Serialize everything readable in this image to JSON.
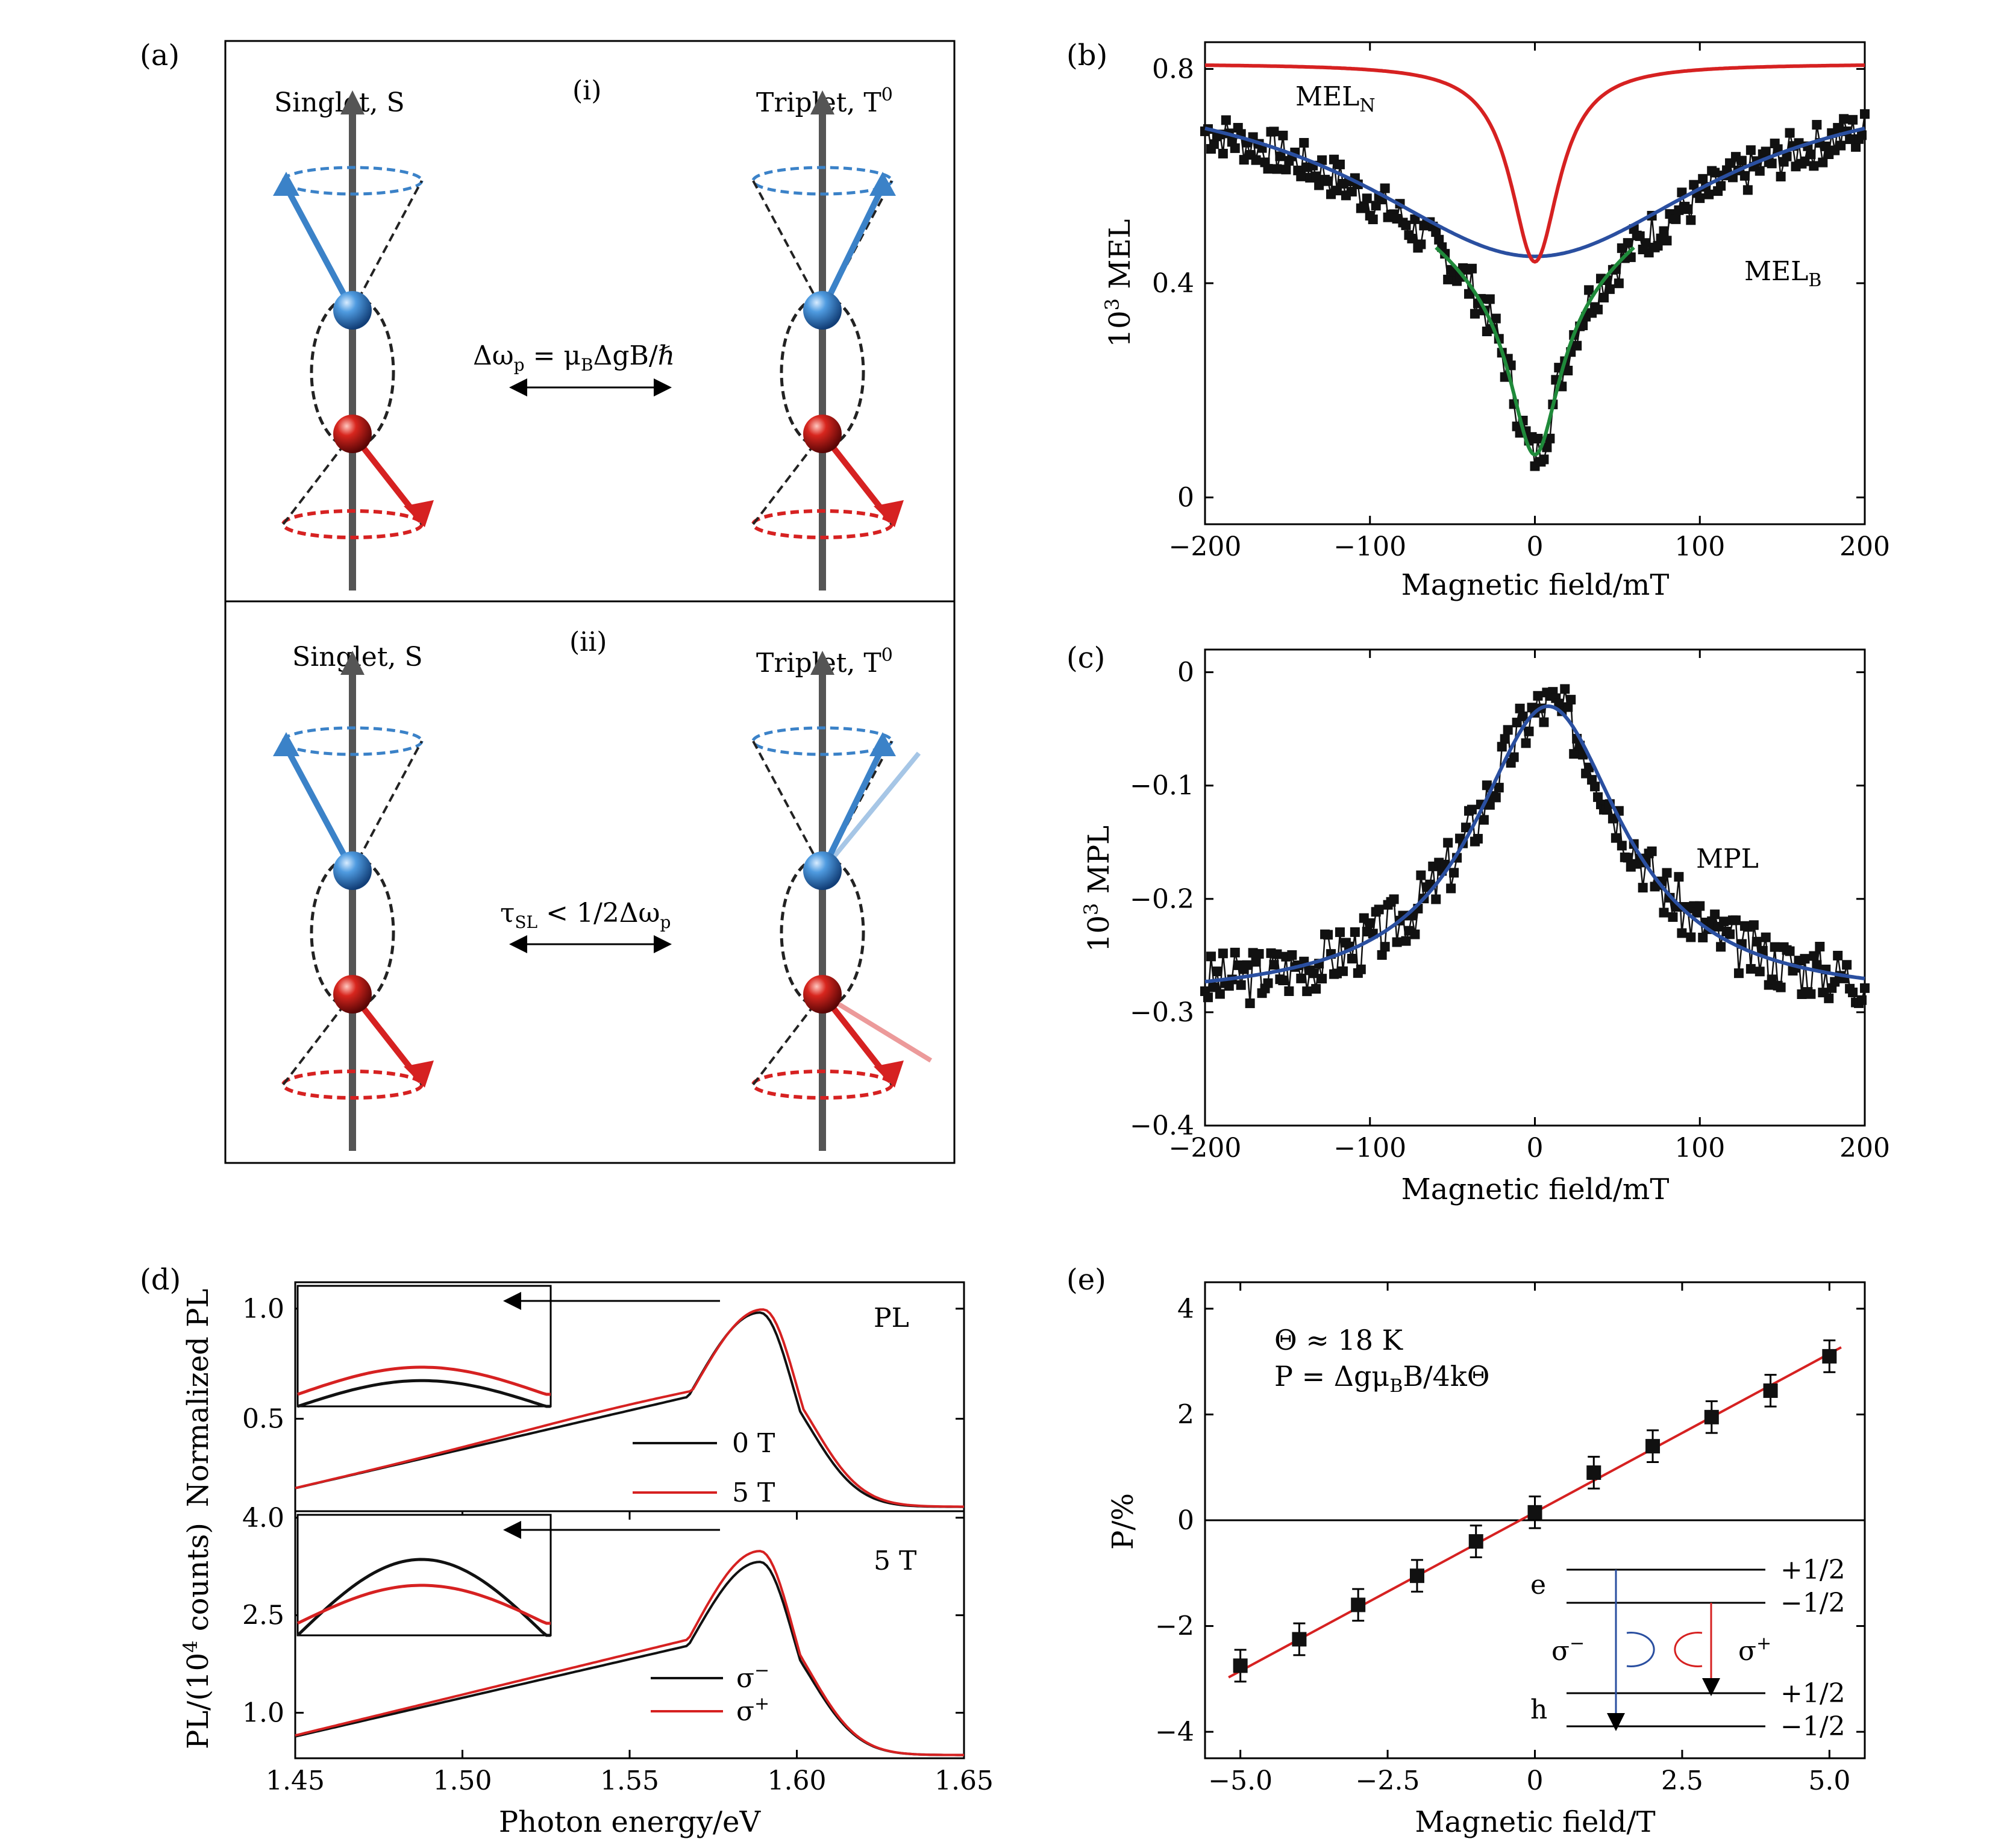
{
  "panel_letters": {
    "a": "(a)",
    "b": "(b)",
    "c": "(c)",
    "d": "(d)",
    "e": "(e)"
  },
  "schematic": {
    "i": {
      "label": "(i)",
      "singlet": "Singlet, S",
      "triplet_prefix": "Triplet, T",
      "triplet_sup": "0",
      "formula": "Δω",
      "formula_sub": "p",
      "formula_rest": " = μ",
      "formula_sub2": "B",
      "formula_end": "ΔgB/ℏ"
    },
    "ii": {
      "label": "(ii)",
      "singlet": "Singlet, S",
      "triplet_prefix": "Triplet, T",
      "triplet_sup": "0",
      "formula": "τ",
      "formula_sub": "SL",
      "formula_rest": " < 1/2Δω",
      "formula_sub2": "p"
    },
    "colors": {
      "electron": "#3b82c8",
      "hole": "#d62121",
      "axis": "#555555",
      "cone": "#222222"
    }
  },
  "chart_data": [
    {
      "id": "b",
      "type": "line",
      "xlabel": "Magnetic field/mT",
      "ylabel_prefix": "10",
      "ylabel_sup": "3",
      "ylabel_suffix": " MEL",
      "xlim": [
        -200,
        200
      ],
      "ylim": [
        -0.05,
        0.85
      ],
      "xticks": [
        -200,
        -100,
        0,
        100,
        200
      ],
      "xtick_labels": [
        "−200",
        "−100",
        "0",
        "100",
        "200"
      ],
      "yticks": [
        0,
        0.4,
        0.8
      ],
      "ytick_labels": [
        "0",
        "0.4",
        "0.8"
      ],
      "series": [
        {
          "name": "MEL",
          "name_sub": "N",
          "color": "#d62121",
          "model": "lorentz",
          "baseline": 0.81,
          "depth": 0.37,
          "width": 18
        },
        {
          "name": "MEL",
          "name_sub": "B",
          "color": "#2a4fa0",
          "model": "lorentz",
          "baseline": 0.79,
          "depth": 0.34,
          "width": 130
        },
        {
          "name": "",
          "color": "#1f8a3a",
          "model": "sum",
          "xrange": [
            -60,
            60
          ]
        },
        {
          "name": "",
          "color": "#111111",
          "model": "data",
          "points": 220,
          "noise": 0.04,
          "seed": 7
        }
      ]
    },
    {
      "id": "c",
      "type": "line",
      "xlabel": "Magnetic field/mT",
      "ylabel_prefix": "10",
      "ylabel_sup": "3",
      "ylabel_suffix": " MPL",
      "xlim": [
        -200,
        200
      ],
      "ylim": [
        -0.4,
        0.02
      ],
      "xticks": [
        -200,
        -100,
        0,
        100,
        200
      ],
      "xtick_labels": [
        "−200",
        "−100",
        "0",
        "100",
        "200"
      ],
      "yticks": [
        0,
        -0.1,
        -0.2,
        -0.3,
        -0.4
      ],
      "ytick_labels": [
        "0",
        "−0.1",
        "−0.2",
        "−0.3",
        "−0.4"
      ],
      "series": [
        {
          "name": "MPL",
          "color": "#2a4fa0",
          "model": "lorentz",
          "baseline": -0.29,
          "depth": -0.26,
          "width": 55,
          "center": 8
        },
        {
          "name": "",
          "color": "#111111",
          "model": "data",
          "points": 220,
          "noise": 0.025,
          "seed": 3
        }
      ]
    },
    {
      "id": "d_top",
      "type": "line",
      "ylabel": "Normalized PL",
      "xlim": [
        1.45,
        1.65
      ],
      "ylim": [
        0.08,
        1.12
      ],
      "yticks": [
        0.5,
        1.0
      ],
      "ytick_labels": [
        "0.5",
        "1.0"
      ],
      "annotation": "PL",
      "series": [
        {
          "name": "0 T",
          "color": "#111111",
          "peak": 1.589,
          "amp": 1.0,
          "shoulder": 0.0
        },
        {
          "name": "5 T",
          "color": "#d62121",
          "peak": 1.59,
          "amp": 1.0,
          "shoulder": 0.03
        }
      ]
    },
    {
      "id": "d_bottom",
      "type": "line",
      "ylabel_prefix": "PL/(10",
      "ylabel_sup": "4",
      "ylabel_suffix": " counts)",
      "xlabel": "Photon energy/eV",
      "xlim": [
        1.45,
        1.65
      ],
      "ylim": [
        0.3,
        4.1
      ],
      "xticks": [
        1.45,
        1.5,
        1.55,
        1.6,
        1.65
      ],
      "xtick_labels": [
        "1.45",
        "1.50",
        "1.55",
        "1.60",
        "1.65"
      ],
      "yticks": [
        1.0,
        2.5,
        4.0
      ],
      "ytick_labels": [
        "1.0",
        "2.5",
        "4.0"
      ],
      "annotation": "5 T",
      "series": [
        {
          "name": "σ",
          "name_sup": "−",
          "color": "#111111",
          "peak": 1.589,
          "amp": 3.38
        },
        {
          "name": "σ",
          "name_sup": "+",
          "color": "#d62121",
          "peak": 1.589,
          "amp": 3.55
        }
      ]
    },
    {
      "id": "e",
      "type": "scatter",
      "xlabel": "Magnetic field/T",
      "ylabel": "P/%",
      "xlim": [
        -5.6,
        5.6
      ],
      "ylim": [
        -4.5,
        4.5
      ],
      "xticks": [
        -5,
        -2.5,
        0,
        2.5,
        5
      ],
      "xtick_labels": [
        "−5.0",
        "−2.5",
        "0",
        "2.5",
        "5.0"
      ],
      "yticks": [
        -4,
        -2,
        0,
        2,
        4
      ],
      "ytick_labels": [
        "−4",
        "−2",
        "0",
        "2",
        "4"
      ],
      "x": [
        -5,
        -4,
        -3,
        -2,
        -1,
        0,
        1,
        2,
        3,
        4,
        5
      ],
      "y": [
        -2.75,
        -2.25,
        -1.6,
        -1.05,
        -0.4,
        0.15,
        0.9,
        1.4,
        1.95,
        2.45,
        3.1
      ],
      "yerr": 0.3,
      "fit": {
        "slope": 0.6,
        "intercept": 0.15,
        "color": "#d62121"
      },
      "formula_1": "Θ ≈ 18 K",
      "formula_2": "P = Δgμ",
      "formula_2_sub": "B",
      "formula_2_end": "B/4kΘ",
      "levels": {
        "e": "e",
        "h": "h",
        "up": "+1/2",
        "down": "−1/2",
        "sigma_minus": "σ",
        "sigma_minus_sup": "−",
        "sigma_plus": "σ",
        "sigma_plus_sup": "+"
      }
    }
  ]
}
